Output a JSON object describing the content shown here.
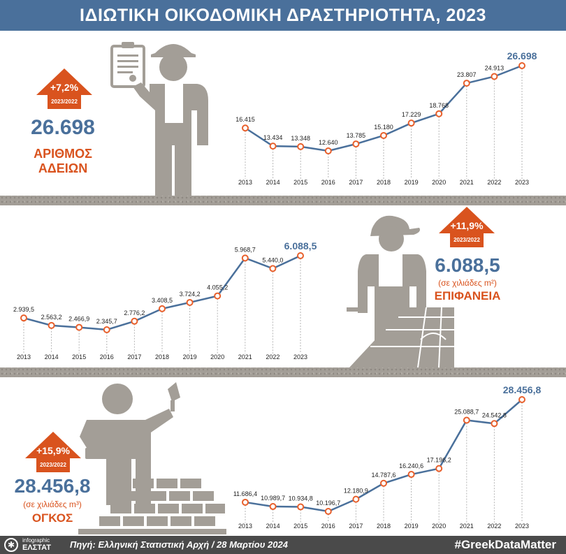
{
  "title": "ΙΔΙΩΤΙΚΗ ΟΙΚΟΔΟΜΙΚΗ ΔΡΑΣΤΗΡΙΟΤΗΤΑ, 2023",
  "colors": {
    "header": "#4a709b",
    "accent": "#d9531e",
    "value": "#4a709b",
    "figure": "#a39e97",
    "line": "#4a709b",
    "marker": "#e8602c"
  },
  "panels": [
    {
      "id": "permits",
      "change": "+7,2%",
      "period": "2023/2022",
      "big_value": "26.698",
      "unit": "",
      "label_line1": "ΑΡΙΘΜΟΣ",
      "label_line2": "ΑΔΕΙΩΝ"
    },
    {
      "id": "surface",
      "change": "+11,9%",
      "period": "2023/2022",
      "big_value": "6.088,5",
      "unit": "(σε χιλιάδες m²)",
      "label_line1": "ΕΠΙΦΑΝΕΙΑ",
      "label_line2": ""
    },
    {
      "id": "volume",
      "change": "+15,9%",
      "period": "2023/2022",
      "big_value": "28.456,8",
      "unit": "(σε χιλιάδες m³)",
      "label_line1": "ΟΓΚΟΣ",
      "label_line2": ""
    }
  ],
  "chart_data": [
    {
      "type": "line",
      "title": "ΑΡΙΘΜΟΣ ΑΔΕΙΩΝ",
      "x": [
        "2013",
        "2014",
        "2015",
        "2016",
        "2017",
        "2018",
        "2019",
        "2020",
        "2021",
        "2022",
        "2023"
      ],
      "values": [
        16415,
        13434,
        13348,
        12640,
        13785,
        15180,
        17229,
        18768,
        23807,
        24913,
        26698
      ],
      "labels": [
        "16.415",
        "13.434",
        "13.348",
        "12.640",
        "13.785",
        "15.180",
        "17.229",
        "18.768",
        "23.807",
        "24.913",
        "26.698"
      ]
    },
    {
      "type": "line",
      "title": "ΕΠΙΦΑΝΕΙΑ",
      "x": [
        "2013",
        "2014",
        "2015",
        "2016",
        "2017",
        "2018",
        "2019",
        "2020",
        "2021",
        "2022",
        "2023"
      ],
      "values": [
        2939.5,
        2563.2,
        2466.9,
        2345.7,
        2776.2,
        3408.5,
        3724.2,
        4055.2,
        5968.7,
        5440.0,
        6088.5
      ],
      "labels": [
        "2.939,5",
        "2.563,2",
        "2.466,9",
        "2.345,7",
        "2.776,2",
        "3.408,5",
        "3.724,2",
        "4.055,2",
        "5.968,7",
        "5.440,0",
        "6.088,5"
      ]
    },
    {
      "type": "line",
      "title": "ΟΓΚΟΣ",
      "x": [
        "2013",
        "2014",
        "2015",
        "2016",
        "2017",
        "2018",
        "2019",
        "2020",
        "2021",
        "2022",
        "2023"
      ],
      "values": [
        11686.4,
        10989.7,
        10934.8,
        10196.7,
        12180.9,
        14787.6,
        16240.6,
        17196.2,
        25088.7,
        24542.8,
        28456.8
      ],
      "labels": [
        "11.686,4",
        "10.989,7",
        "10.934,8",
        "10.196,7",
        "12.180,9",
        "14.787,6",
        "16.240,6",
        "17.196,2",
        "25.088,7",
        "24.542,8",
        "28.456,8"
      ]
    }
  ],
  "footer": {
    "logo_line1": "infographic",
    "logo_line2": "ΕΛΣΤΑΤ",
    "source": "Πηγή: Ελληνική Στατιστική Αρχή  / 28 Μαρτίου 2024",
    "hashtag": "#GreekDataMatter"
  }
}
